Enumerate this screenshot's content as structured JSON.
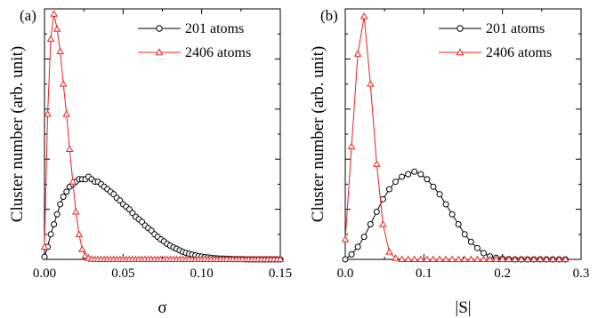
{
  "figure": {
    "ylabel": "Cluster number (arb. unit)"
  },
  "chart_data": [
    {
      "type": "line",
      "panel_label": "(a)",
      "xlabel": "σ",
      "ylabel": "Cluster number (arb. unit)",
      "xlim": [
        0,
        0.15
      ],
      "ylim": [
        0,
        1.0
      ],
      "xticks": [
        0.0,
        0.05,
        0.1,
        0.15
      ],
      "xtick_labels": [
        "0.00",
        "0.05",
        "0.10",
        "0.15"
      ],
      "y_tick_labels_shown": false,
      "grid": false,
      "legend_position": "top-right",
      "series": [
        {
          "name": "201 atoms",
          "color": "#000000",
          "marker": "circle",
          "x": [
            0.0,
            0.002,
            0.004,
            0.006,
            0.008,
            0.01,
            0.012,
            0.014,
            0.016,
            0.018,
            0.02,
            0.022,
            0.024,
            0.026,
            0.028,
            0.03,
            0.032,
            0.034,
            0.036,
            0.038,
            0.04,
            0.042,
            0.044,
            0.046,
            0.048,
            0.05,
            0.052,
            0.054,
            0.056,
            0.058,
            0.06,
            0.062,
            0.064,
            0.066,
            0.068,
            0.07,
            0.072,
            0.074,
            0.076,
            0.078,
            0.08,
            0.082,
            0.084,
            0.086,
            0.088,
            0.09,
            0.092,
            0.094,
            0.096,
            0.098,
            0.1,
            0.102,
            0.104,
            0.106,
            0.108,
            0.11,
            0.112,
            0.114,
            0.116,
            0.118,
            0.12,
            0.122,
            0.124,
            0.126,
            0.128,
            0.13,
            0.132,
            0.134,
            0.136,
            0.138,
            0.14,
            0.142,
            0.144,
            0.146,
            0.148,
            0.15
          ],
          "values": [
            0.01,
            0.05,
            0.1,
            0.14,
            0.18,
            0.22,
            0.25,
            0.27,
            0.29,
            0.3,
            0.31,
            0.32,
            0.32,
            0.32,
            0.33,
            0.32,
            0.31,
            0.31,
            0.3,
            0.29,
            0.28,
            0.27,
            0.26,
            0.245,
            0.235,
            0.22,
            0.21,
            0.2,
            0.185,
            0.17,
            0.16,
            0.15,
            0.135,
            0.125,
            0.115,
            0.1,
            0.09,
            0.08,
            0.072,
            0.062,
            0.055,
            0.048,
            0.042,
            0.036,
            0.03,
            0.026,
            0.022,
            0.019,
            0.016,
            0.013,
            0.011,
            0.009,
            0.008,
            0.006,
            0.005,
            0.004,
            0.003,
            0.003,
            0.002,
            0.002,
            0.001,
            0.001,
            0.001,
            0.001,
            0.0,
            0.0,
            0.0,
            0.0,
            0.0,
            0.0,
            0.0,
            0.0,
            0.0,
            0.0,
            0.0,
            0.0
          ]
        },
        {
          "name": "2406 atoms",
          "color": "#e8211e",
          "marker": "triangle",
          "x": [
            0.0,
            0.002,
            0.004,
            0.006,
            0.008,
            0.01,
            0.012,
            0.014,
            0.016,
            0.018,
            0.02,
            0.022,
            0.024,
            0.026,
            0.028,
            0.03,
            0.032,
            0.034,
            0.036,
            0.038,
            0.04,
            0.042,
            0.044,
            0.046,
            0.048,
            0.05,
            0.052,
            0.054,
            0.056,
            0.058,
            0.06,
            0.062,
            0.064,
            0.066,
            0.068,
            0.07,
            0.072,
            0.074,
            0.076,
            0.078,
            0.08,
            0.082,
            0.084,
            0.086,
            0.088,
            0.09,
            0.092,
            0.094,
            0.096,
            0.098,
            0.1,
            0.102,
            0.104,
            0.106,
            0.108,
            0.11,
            0.112,
            0.114,
            0.116,
            0.118,
            0.12,
            0.122,
            0.124,
            0.126,
            0.128,
            0.13,
            0.132,
            0.134,
            0.136,
            0.138,
            0.14,
            0.142,
            0.144,
            0.146,
            0.148,
            0.15
          ],
          "values": [
            0.05,
            0.58,
            0.88,
            0.98,
            0.92,
            0.83,
            0.7,
            0.58,
            0.44,
            0.31,
            0.19,
            0.1,
            0.04,
            0.015,
            0.005,
            0.001,
            0.0,
            0.0,
            0.0,
            0.0,
            0.0,
            0.0,
            0.0,
            0.0,
            0.0,
            0.0,
            0.0,
            0.0,
            0.0,
            0.0,
            0.0,
            0.0,
            0.0,
            0.0,
            0.0,
            0.0,
            0.0,
            0.0,
            0.0,
            0.0,
            0.0,
            0.0,
            0.0,
            0.0,
            0.0,
            0.0,
            0.0,
            0.0,
            0.0,
            0.0,
            0.0,
            0.0,
            0.0,
            0.0,
            0.0,
            0.0,
            0.0,
            0.0,
            0.0,
            0.0,
            0.0,
            0.0,
            0.0,
            0.0,
            0.0,
            0.0,
            0.0,
            0.0,
            0.0,
            0.0,
            0.0,
            0.0,
            0.0,
            0.0,
            0.0,
            0.0
          ]
        }
      ]
    },
    {
      "type": "line",
      "panel_label": "(b)",
      "xlabel": "|S|",
      "ylabel": "Cluster number (arb. unit)",
      "xlim": [
        0,
        0.3
      ],
      "ylim": [
        0,
        1.0
      ],
      "xticks": [
        0.0,
        0.1,
        0.2,
        0.3
      ],
      "xtick_labels": [
        "0.0",
        "0.1",
        "0.2",
        "0.3"
      ],
      "y_tick_labels_shown": false,
      "grid": false,
      "legend_position": "top-right",
      "series": [
        {
          "name": "201 atoms",
          "color": "#000000",
          "marker": "circle",
          "x": [
            0.0,
            0.008,
            0.016,
            0.024,
            0.032,
            0.04,
            0.048,
            0.056,
            0.064,
            0.072,
            0.08,
            0.088,
            0.096,
            0.104,
            0.112,
            0.12,
            0.128,
            0.136,
            0.144,
            0.152,
            0.16,
            0.168,
            0.176,
            0.184,
            0.192,
            0.2,
            0.208,
            0.216,
            0.224,
            0.232,
            0.24,
            0.248,
            0.256,
            0.264,
            0.272,
            0.28
          ],
          "values": [
            0.0,
            0.02,
            0.05,
            0.09,
            0.14,
            0.19,
            0.24,
            0.28,
            0.31,
            0.33,
            0.34,
            0.35,
            0.34,
            0.32,
            0.29,
            0.26,
            0.22,
            0.18,
            0.14,
            0.1,
            0.07,
            0.045,
            0.025,
            0.012,
            0.006,
            0.003,
            0.001,
            0.0,
            0.0,
            0.0,
            0.0,
            0.0,
            0.0,
            0.0,
            0.0,
            0.0
          ]
        },
        {
          "name": "2406 atoms",
          "color": "#e8211e",
          "marker": "triangle",
          "x": [
            0.0,
            0.008,
            0.016,
            0.024,
            0.032,
            0.04,
            0.048,
            0.056,
            0.064,
            0.072,
            0.08,
            0.088,
            0.096,
            0.104,
            0.112,
            0.12,
            0.128,
            0.136,
            0.144,
            0.152,
            0.16,
            0.168,
            0.176,
            0.184,
            0.192,
            0.2,
            0.208,
            0.216,
            0.224,
            0.232,
            0.24,
            0.248,
            0.256,
            0.264,
            0.272,
            0.28
          ],
          "values": [
            0.08,
            0.45,
            0.82,
            0.97,
            0.7,
            0.38,
            0.14,
            0.03,
            0.005,
            0.0,
            0.0,
            0.0,
            0.0,
            0.0,
            0.0,
            0.0,
            0.0,
            0.0,
            0.0,
            0.0,
            0.0,
            0.0,
            0.0,
            0.0,
            0.0,
            0.0,
            0.0,
            0.0,
            0.0,
            0.0,
            0.0,
            0.0,
            0.0,
            0.0,
            0.0,
            0.0
          ]
        }
      ]
    }
  ]
}
